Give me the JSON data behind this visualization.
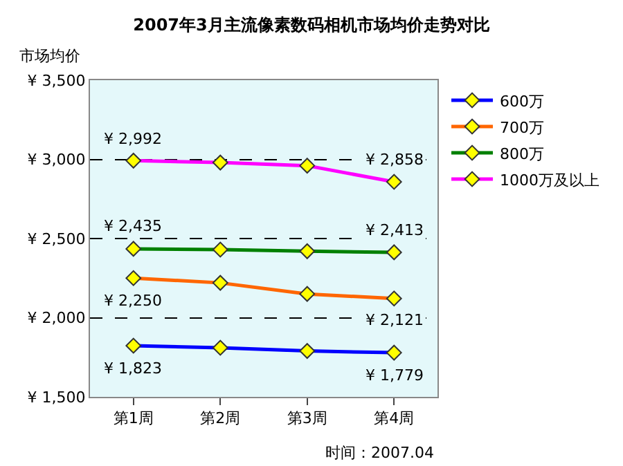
{
  "chart_data": {
    "type": "line",
    "title": "2007年3月主流像素数码相机市场均价走势对比",
    "ylabel": "市场均价",
    "categories": [
      "第1周",
      "第2周",
      "第3周",
      "第4周"
    ],
    "series": [
      {
        "name": "600万",
        "color": "#0000ff",
        "values": [
          1823,
          1810,
          1790,
          1779
        ],
        "value_labels": [
          "¥ 1,823",
          null,
          null,
          "¥ 1,779"
        ]
      },
      {
        "name": "700万",
        "color": "#ff6600",
        "values": [
          2250,
          2220,
          2150,
          2121
        ],
        "value_labels": [
          "¥ 2,250",
          null,
          null,
          "¥ 2,121"
        ]
      },
      {
        "name": "800万",
        "color": "#008000",
        "values": [
          2435,
          2430,
          2420,
          2413
        ],
        "value_labels": [
          "¥ 2,435",
          null,
          null,
          "¥ 2,413"
        ]
      },
      {
        "name": "1000万及以上",
        "color": "#ff00ff",
        "values": [
          2992,
          2980,
          2960,
          2858
        ],
        "value_labels": [
          "¥ 2,992",
          null,
          null,
          "¥ 2,858"
        ]
      }
    ],
    "ylim": [
      1500,
      3500
    ],
    "yticks": [
      {
        "value": 1500,
        "label": "¥ 1,500"
      },
      {
        "value": 2000,
        "label": "¥ 2,000"
      },
      {
        "value": 2500,
        "label": "¥ 2,500"
      },
      {
        "value": 3000,
        "label": "¥ 3,000"
      },
      {
        "value": 3500,
        "label": "¥ 3,500"
      }
    ],
    "grid": "y",
    "legend": "right",
    "marker": "diamond",
    "line_style": "solid",
    "annotations": [
      "时间：2007.04"
    ]
  }
}
